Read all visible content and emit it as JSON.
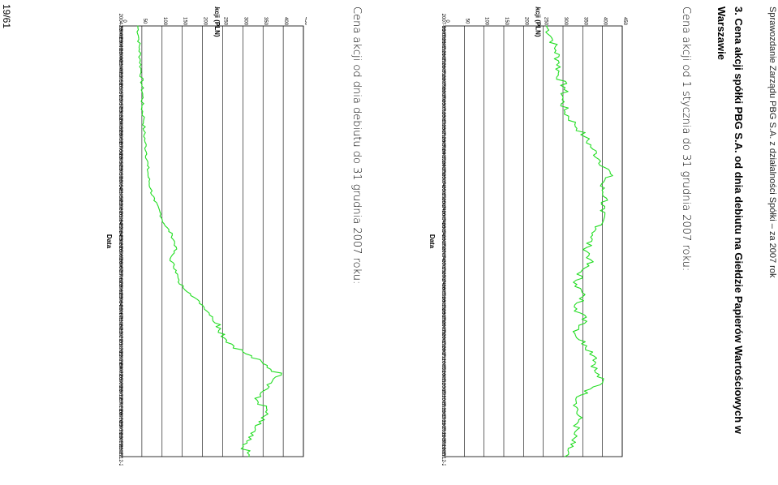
{
  "header": {
    "text": "Sprawozdanie Zarządu PBG S.A. z działalności Spółki – za 2007 rok"
  },
  "section": {
    "title_line1": "3.  Cena  akcji  spółki  PBG  S.A.  od  dnia  debiutu  na  Giełdzie  Papierów  Wartościowych  w",
    "title_line2": "Warszawie"
  },
  "captions": {
    "chart1": "Cena akcji od 1 stycznia do 31 grudnia 2007 roku:",
    "chart2": "Cena akcji od dnia debiutu do 31 grudnia 2007 roku:"
  },
  "page_number": "19/61",
  "colors": {
    "line": "#22dd22",
    "grid": "#000000"
  },
  "chart_data": [
    {
      "type": "line",
      "title": "",
      "ylabel": "Cena akcji (PLN)",
      "xlabel": "Data",
      "ylim": [
        0,
        450
      ],
      "yticks": [
        0,
        50,
        100,
        150,
        200,
        250,
        300,
        350,
        400,
        450
      ],
      "grid": true,
      "x": [
        "2007-01-02",
        "2007-01-11",
        "2007-01-22",
        "2007-01-31",
        "2007-02-09",
        "2007-02-20",
        "2007-03-01",
        "2007-03-12",
        "2007-03-21",
        "2007-03-30",
        "2007-04-12",
        "2007-04-23",
        "2007-05-04",
        "2007-05-15",
        "2007-05-24",
        "2007-06-04",
        "2007-06-14",
        "2007-06-25",
        "2007-07-04",
        "2007-07-13",
        "2007-07-24",
        "2007-08-02",
        "2007-08-13",
        "2007-08-23",
        "2007-09-03",
        "2007-09-12",
        "2007-09-21",
        "2007-10-02",
        "2007-10-11",
        "2007-10-22",
        "2007-10-31",
        "2007-11-12",
        "2007-11-21",
        "2007-11-30",
        "2007-12-11",
        "2007-12-20"
      ],
      "series": [
        {
          "values": [
            258,
            272,
            282,
            290,
            288,
            305,
            298,
            305,
            330,
            355,
            375,
            395,
            420,
            395,
            410,
            395,
            400,
            375,
            360,
            370,
            345,
            335,
            350,
            335,
            360,
            330,
            360,
            385,
            380,
            400,
            345,
            335,
            340,
            330,
            320,
            305
          ]
        }
      ]
    },
    {
      "type": "line",
      "title": "",
      "ylabel": "Cena akcji (PLN)",
      "xlabel": "Data",
      "ylim": [
        0,
        450
      ],
      "yticks": [
        0,
        50,
        100,
        150,
        200,
        250,
        300,
        350,
        400,
        450
      ],
      "grid": true,
      "x": [
        "2004-08-03",
        "2004-09-03",
        "2004-10-06",
        "2004-11-09",
        "2004-12-13",
        "2005-01-17",
        "2005-02-17",
        "2005-03-22",
        "2005-04-29",
        "2005-06-03",
        "2005-07-06",
        "2005-08-10",
        "2005-09-13",
        "2005-10-14",
        "2005-11-18",
        "2005-12-21",
        "2006-01-24",
        "2006-02-24",
        "2006-03-29",
        "2006-05-05",
        "2006-06-07",
        "2006-07-11",
        "2006-08-11",
        "2006-09-14",
        "2006-10-17",
        "2006-11-20",
        "2006-12-21",
        "2007-01-26",
        "2007-02-28",
        "2007-04-02",
        "2007-05-09",
        "2007-06-12",
        "2007-07-13",
        "2007-08-16",
        "2007-09-18",
        "2007-10-19",
        "2007-11-22",
        "2007-12-28"
      ],
      "series": [
        {
          "values": [
            40,
            42,
            44,
            46,
            48,
            50,
            52,
            50,
            55,
            55,
            58,
            62,
            64,
            66,
            72,
            80,
            95,
            105,
            125,
            135,
            120,
            135,
            140,
            170,
            200,
            225,
            245,
            260,
            300,
            350,
            395,
            365,
            330,
            360,
            340,
            320,
            300,
            315
          ]
        }
      ]
    }
  ]
}
